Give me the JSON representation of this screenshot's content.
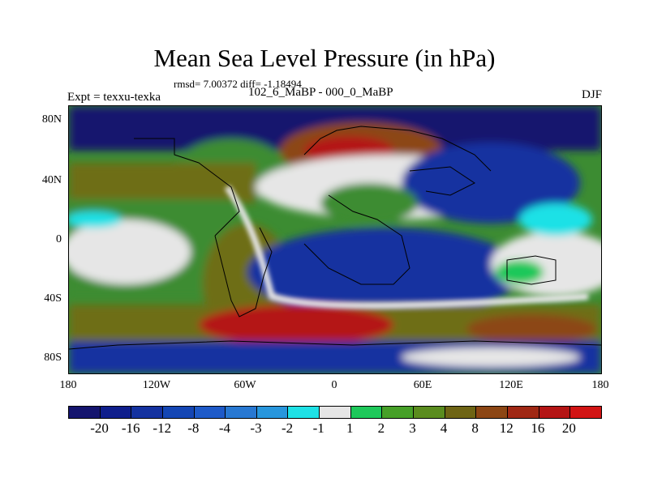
{
  "header": {
    "title": "Mean Sea Level Pressure (in hPa)",
    "stats": "rmsd= 7.00372 diff= -1.18494",
    "expt": "Expt = texxu-texka",
    "difference": "102_6_MaBP - 000_0_MaBP",
    "season": "DJF"
  },
  "axes": {
    "y_ticks": [
      "80N",
      "40N",
      "0",
      "40S",
      "80S"
    ],
    "x_ticks": [
      "180",
      "120W",
      "60W",
      "0",
      "60E",
      "120E",
      "180"
    ]
  },
  "colorbar": {
    "labels": [
      "-20",
      "-16",
      "-12",
      "-8",
      "-4",
      "-3",
      "-2",
      "-1",
      "1",
      "2",
      "3",
      "4",
      "8",
      "12",
      "16",
      "20"
    ],
    "colors": [
      "#14146e",
      "#0f1e8c",
      "#1432a0",
      "#1446b4",
      "#1e5ac8",
      "#2878d2",
      "#2896dc",
      "#1ee1e6",
      "#e6e6e6",
      "#1ec85a",
      "#46a028",
      "#5a8c1e",
      "#6e6414",
      "#8c4614",
      "#a02814",
      "#b41414",
      "#d21414"
    ]
  },
  "map_colors": {
    "land_ocean_green": "#3c8c32",
    "olive": "#6e6e14",
    "deep_blue": "#1432a0",
    "navy": "#14146e",
    "light_gray": "#e6e6e6",
    "cyan": "#1ee1e6",
    "red": "#b41414",
    "brown": "#8c4614",
    "bright_green": "#1ec85a"
  }
}
